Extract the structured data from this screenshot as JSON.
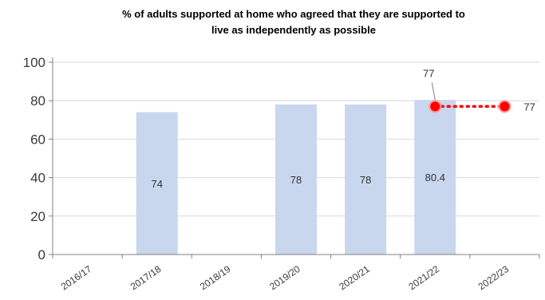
{
  "chart_data": {
    "type": "bar",
    "title": "% of adults supported at home who agreed that they are supported to live as independently as possible",
    "title_lines": [
      "% of adults supported at home who agreed that they are supported to",
      "live as independently as possible"
    ],
    "categories": [
      "2016/17",
      "2017/18",
      "2018/19",
      "2019/20",
      "2020/21",
      "2021/22",
      "2022/23"
    ],
    "series": [
      {
        "type": "bar",
        "values": [
          null,
          74,
          null,
          78,
          78,
          80.4,
          null
        ],
        "value_labels": [
          "",
          "74",
          "",
          "78",
          "78",
          "80.4",
          ""
        ],
        "color": "#c9d7ee"
      },
      {
        "type": "line",
        "values": [
          null,
          null,
          null,
          null,
          null,
          77,
          77
        ],
        "value_labels": [
          "",
          "",
          "",
          "",
          "",
          "77",
          "77"
        ],
        "color": "#ff0000",
        "line_style": "dotted",
        "marker": "circle"
      }
    ],
    "y_ticks": [
      "0",
      "20",
      "40",
      "60",
      "80",
      "100"
    ],
    "ylim": [
      0,
      100
    ],
    "grid": true,
    "legend": "none"
  }
}
